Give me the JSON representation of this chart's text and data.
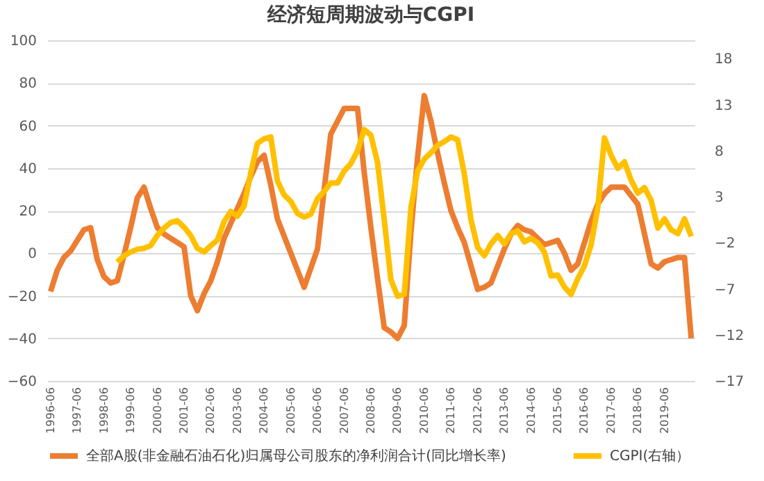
{
  "chart_data": {
    "type": "line",
    "title": "经济短周期波动与CGPI",
    "categories": [
      "1996-06",
      null,
      null,
      null,
      "1997-06",
      null,
      null,
      null,
      "1998-06",
      null,
      null,
      null,
      "1999-06",
      null,
      null,
      null,
      "2000-06",
      null,
      null,
      null,
      "2001-06",
      null,
      null,
      null,
      "2002-06",
      null,
      null,
      null,
      "2003-06",
      null,
      null,
      null,
      "2004-06",
      null,
      null,
      null,
      "2005-06",
      null,
      null,
      null,
      "2006-06",
      null,
      null,
      null,
      "2007-06",
      null,
      null,
      null,
      "2008-06",
      null,
      null,
      null,
      "2009-06",
      null,
      null,
      null,
      "2010-06",
      null,
      null,
      null,
      "2011-06",
      null,
      null,
      null,
      "2012-06",
      null,
      null,
      null,
      "2013-06",
      null,
      null,
      null,
      "2014-06",
      null,
      null,
      null,
      "2015-06",
      null,
      null,
      null,
      "2016-06",
      null,
      null,
      null,
      "2017-06",
      null,
      null,
      null,
      "2018-06",
      null,
      null,
      null,
      "2019-06",
      null,
      null,
      null,
      null
    ],
    "series": [
      {
        "name": "全部A股(非金融石油石化)归属母公司股东的净利润合计(同比增长率)",
        "color": "#ed7d31",
        "values": [
          -18,
          -8,
          -2,
          1,
          6,
          11,
          12,
          -3,
          -11,
          -14,
          -13,
          -1,
          12,
          26,
          31,
          21,
          12,
          9,
          7,
          5,
          3,
          -20,
          -27,
          -19,
          -13,
          -4,
          7,
          14,
          21,
          28,
          36,
          43,
          46,
          32,
          16,
          8,
          0,
          -8,
          -16,
          -7,
          2,
          30,
          56,
          62,
          68,
          68,
          68,
          38,
          12,
          -12,
          -35,
          -37,
          -40,
          -34,
          10,
          45,
          74,
          62,
          47,
          33,
          20,
          12,
          5,
          -6,
          -17,
          -16,
          -14,
          -6,
          2,
          9,
          13,
          11,
          10,
          7,
          4,
          5,
          6,
          0,
          -8,
          -5,
          5,
          15,
          23,
          28,
          31,
          31,
          31,
          27,
          23,
          9,
          -5,
          -7,
          -4,
          -3,
          -2,
          -2,
          -40
        ]
      },
      {
        "name": "CGPI(右轴）",
        "color": "#ffc000",
        "axis": "y2",
        "values": [
          null,
          null,
          null,
          null,
          null,
          null,
          null,
          null,
          null,
          null,
          -4.1,
          -3.4,
          -3,
          -2.7,
          -2.6,
          -2.3,
          -1.2,
          -0.4,
          0.2,
          0.4,
          -0.3,
          -1.2,
          -2.6,
          -3,
          -2.3,
          -1.7,
          0.3,
          1.4,
          0.9,
          2,
          5.6,
          8.8,
          9.3,
          9.5,
          4.7,
          3.2,
          2.5,
          1.2,
          0.8,
          1.1,
          2.8,
          3.6,
          4.5,
          4.5,
          5.8,
          6.6,
          8,
          10.3,
          9.7,
          6.7,
          0.5,
          -6,
          -7.8,
          -7.6,
          1.8,
          5.8,
          7.1,
          7.8,
          8.6,
          9,
          9.5,
          9.2,
          5.5,
          0.5,
          -2.5,
          -3.4,
          -2.1,
          -1.2,
          -2.1,
          -1,
          -0.7,
          -1.9,
          -1.5,
          -2,
          -3,
          -5.6,
          -5.5,
          -6.8,
          -7.6,
          -5.9,
          -4.5,
          -2.2,
          1.8,
          9.4,
          7.5,
          6.1,
          6.8,
          4.8,
          3.4,
          4,
          2.6,
          -0.4,
          0.6,
          -0.6,
          -1,
          0.6,
          -1.3
        ]
      }
    ],
    "ylim": [
      -60,
      100
    ],
    "yticks": [
      -60,
      -40,
      -20,
      0,
      20,
      40,
      60,
      80,
      100
    ],
    "y2lim": [
      -17,
      20
    ],
    "y2ticks": [
      -17,
      -12,
      -7,
      -2,
      3,
      8,
      13,
      18
    ],
    "grid": "y",
    "legend": "bottom"
  }
}
